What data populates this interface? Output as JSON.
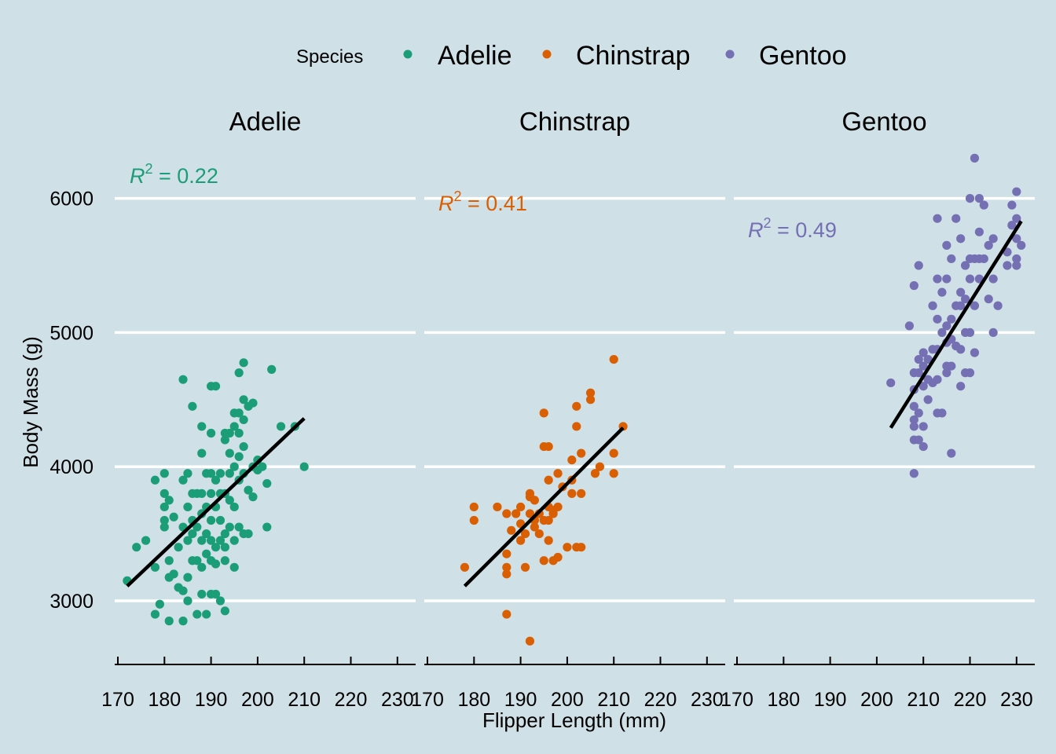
{
  "chart_data": {
    "type": "scatter",
    "xlabel": "Flipper Length (mm)",
    "ylabel": "Body Mass (g)",
    "xlim": [
      170,
      230
    ],
    "ylim": [
      2500,
      6500
    ],
    "xticks": [
      170,
      180,
      190,
      200,
      210,
      220,
      230
    ],
    "yticks": [
      3000,
      4000,
      5000,
      6000
    ],
    "grid": "horizontal major lines",
    "legend": {
      "title": "Species",
      "position": "top",
      "entries": [
        {
          "label": "Adelie",
          "color": "#1b9e77"
        },
        {
          "label": "Chinstrap",
          "color": "#d95f02"
        },
        {
          "label": "Gentoo",
          "color": "#7570b3"
        }
      ]
    },
    "panels": [
      {
        "name": "Adelie",
        "color": "#1b9e77",
        "r2_label": "= 0.22",
        "fit": {
          "x": [
            172,
            210
          ],
          "y": [
            3110,
            4360
          ]
        },
        "points": [
          [
            172,
            3150
          ],
          [
            174,
            3400
          ],
          [
            176,
            3450
          ],
          [
            178,
            3900
          ],
          [
            178,
            3250
          ],
          [
            179,
            2975
          ],
          [
            178,
            2900
          ],
          [
            180,
            3950
          ],
          [
            180,
            3800
          ],
          [
            180,
            3700
          ],
          [
            180,
            3600
          ],
          [
            180,
            3550
          ],
          [
            181,
            3300
          ],
          [
            181,
            3175
          ],
          [
            181,
            2850
          ],
          [
            181,
            3750
          ],
          [
            182,
            3625
          ],
          [
            182,
            3200
          ],
          [
            183,
            3400
          ],
          [
            183,
            3100
          ],
          [
            184,
            3550
          ],
          [
            184,
            3075
          ],
          [
            184,
            2850
          ],
          [
            184,
            3900
          ],
          [
            184,
            4650
          ],
          [
            185,
            3950
          ],
          [
            185,
            3700
          ],
          [
            185,
            3450
          ],
          [
            185,
            3175
          ],
          [
            185,
            3000
          ],
          [
            186,
            3800
          ],
          [
            186,
            3600
          ],
          [
            186,
            3500
          ],
          [
            186,
            3300
          ],
          [
            186,
            4450
          ],
          [
            187,
            3800
          ],
          [
            187,
            3550
          ],
          [
            187,
            3300
          ],
          [
            187,
            2900
          ],
          [
            188,
            4300
          ],
          [
            188,
            4100
          ],
          [
            188,
            3800
          ],
          [
            188,
            3650
          ],
          [
            188,
            3450
          ],
          [
            188,
            3250
          ],
          [
            188,
            3050
          ],
          [
            189,
            3950
          ],
          [
            189,
            3700
          ],
          [
            189,
            3500
          ],
          [
            189,
            3350
          ],
          [
            189,
            2900
          ],
          [
            190,
            4600
          ],
          [
            190,
            4250
          ],
          [
            190,
            3950
          ],
          [
            190,
            3800
          ],
          [
            190,
            3600
          ],
          [
            190,
            3450
          ],
          [
            190,
            3300
          ],
          [
            190,
            3050
          ],
          [
            191,
            4600
          ],
          [
            191,
            3900
          ],
          [
            191,
            3700
          ],
          [
            191,
            3400
          ],
          [
            191,
            3275
          ],
          [
            191,
            3050
          ],
          [
            192,
            3950
          ],
          [
            192,
            3800
          ],
          [
            192,
            3600
          ],
          [
            192,
            3450
          ],
          [
            192,
            3000
          ],
          [
            193,
            4250
          ],
          [
            193,
            4200
          ],
          [
            193,
            3800
          ],
          [
            193,
            3500
          ],
          [
            193,
            3400
          ],
          [
            193,
            3300
          ],
          [
            193,
            2925
          ],
          [
            194,
            4250
          ],
          [
            194,
            4100
          ],
          [
            194,
            3950
          ],
          [
            194,
            3750
          ],
          [
            194,
            3550
          ],
          [
            195,
            4400
          ],
          [
            195,
            4300
          ],
          [
            195,
            4000
          ],
          [
            195,
            3700
          ],
          [
            195,
            3450
          ],
          [
            195,
            3250
          ],
          [
            196,
            4700
          ],
          [
            196,
            4400
          ],
          [
            196,
            4250
          ],
          [
            196,
            4075
          ],
          [
            196,
            3900
          ],
          [
            196,
            3550
          ],
          [
            197,
            4775
          ],
          [
            197,
            4500
          ],
          [
            197,
            4350
          ],
          [
            197,
            4150
          ],
          [
            197,
            3950
          ],
          [
            197,
            3500
          ],
          [
            198,
            4450
          ],
          [
            198,
            3825
          ],
          [
            198,
            3500
          ],
          [
            199,
            4475
          ],
          [
            199,
            4000
          ],
          [
            199,
            3775
          ],
          [
            200,
            4050
          ],
          [
            200,
            3975
          ],
          [
            201,
            4000
          ],
          [
            202,
            3875
          ],
          [
            202,
            3550
          ],
          [
            203,
            4725
          ],
          [
            205,
            4300
          ],
          [
            208,
            4300
          ],
          [
            210,
            4000
          ]
        ]
      },
      {
        "name": "Chinstrap",
        "color": "#d95f02",
        "r2_label": "= 0.41",
        "fit": {
          "x": [
            178,
            212
          ],
          "y": [
            3110,
            4290
          ]
        },
        "points": [
          [
            178,
            3250
          ],
          [
            180,
            3700
          ],
          [
            180,
            3600
          ],
          [
            185,
            3700
          ],
          [
            187,
            3650
          ],
          [
            187,
            3350
          ],
          [
            187,
            3250
          ],
          [
            187,
            3200
          ],
          [
            187,
            2900
          ],
          [
            188,
            3525
          ],
          [
            189,
            3650
          ],
          [
            190,
            3575
          ],
          [
            190,
            3450
          ],
          [
            190,
            3700
          ],
          [
            191,
            3500
          ],
          [
            191,
            3250
          ],
          [
            192,
            3650
          ],
          [
            192,
            3775
          ],
          [
            192,
            3800
          ],
          [
            192,
            2700
          ],
          [
            193,
            3750
          ],
          [
            193,
            3600
          ],
          [
            193,
            3550
          ],
          [
            194,
            3650
          ],
          [
            194,
            3500
          ],
          [
            195,
            4150
          ],
          [
            195,
            4400
          ],
          [
            195,
            3600
          ],
          [
            195,
            3300
          ],
          [
            196,
            4150
          ],
          [
            196,
            3900
          ],
          [
            196,
            3700
          ],
          [
            196,
            3600
          ],
          [
            196,
            3450
          ],
          [
            197,
            3650
          ],
          [
            197,
            3675
          ],
          [
            197,
            3300
          ],
          [
            198,
            3950
          ],
          [
            198,
            3700
          ],
          [
            198,
            3325
          ],
          [
            199,
            3850
          ],
          [
            200,
            3400
          ],
          [
            201,
            4050
          ],
          [
            201,
            3900
          ],
          [
            201,
            3800
          ],
          [
            202,
            4450
          ],
          [
            202,
            4300
          ],
          [
            202,
            3400
          ],
          [
            203,
            4100
          ],
          [
            203,
            3800
          ],
          [
            203,
            3400
          ],
          [
            205,
            4550
          ],
          [
            205,
            4500
          ],
          [
            206,
            3950
          ],
          [
            207,
            4000
          ],
          [
            210,
            4800
          ],
          [
            210,
            4100
          ],
          [
            210,
            3950
          ],
          [
            212,
            4300
          ]
        ]
      },
      {
        "name": "Gentoo",
        "color": "#7570b3",
        "r2_label": "= 0.49",
        "fit": {
          "x": [
            203,
            231
          ],
          "y": [
            4290,
            5830
          ]
        },
        "points": [
          [
            203,
            4625
          ],
          [
            207,
            5050
          ],
          [
            208,
            5350
          ],
          [
            208,
            4700
          ],
          [
            208,
            4575
          ],
          [
            208,
            4450
          ],
          [
            208,
            4350
          ],
          [
            208,
            4300
          ],
          [
            208,
            4200
          ],
          [
            208,
            3950
          ],
          [
            209,
            5500
          ],
          [
            209,
            4800
          ],
          [
            209,
            4700
          ],
          [
            209,
            4400
          ],
          [
            209,
            4200
          ],
          [
            210,
            4850
          ],
          [
            210,
            4750
          ],
          [
            210,
            4600
          ],
          [
            210,
            4300
          ],
          [
            210,
            4150
          ],
          [
            211,
            4800
          ],
          [
            211,
            4500
          ],
          [
            211,
            4650
          ],
          [
            212,
            5200
          ],
          [
            212,
            4875
          ],
          [
            212,
            4625
          ],
          [
            213,
            5850
          ],
          [
            213,
            5400
          ],
          [
            213,
            5100
          ],
          [
            213,
            4875
          ],
          [
            213,
            4650
          ],
          [
            213,
            4400
          ],
          [
            214,
            5300
          ],
          [
            214,
            5000
          ],
          [
            214,
            4400
          ],
          [
            215,
            5650
          ],
          [
            215,
            5400
          ],
          [
            215,
            5050
          ],
          [
            215,
            4925
          ],
          [
            215,
            4700
          ],
          [
            215,
            4750
          ],
          [
            216,
            5550
          ],
          [
            216,
            5100
          ],
          [
            216,
            4950
          ],
          [
            216,
            4750
          ],
          [
            216,
            4100
          ],
          [
            217,
            5850
          ],
          [
            217,
            5200
          ],
          [
            217,
            4900
          ],
          [
            218,
            5700
          ],
          [
            218,
            5300
          ],
          [
            218,
            5200
          ],
          [
            218,
            4875
          ],
          [
            218,
            4600
          ],
          [
            219,
            5500
          ],
          [
            219,
            5250
          ],
          [
            219,
            5000
          ],
          [
            219,
            4700
          ],
          [
            220,
            6000
          ],
          [
            220,
            5550
          ],
          [
            220,
            5400
          ],
          [
            220,
            5000
          ],
          [
            220,
            4700
          ],
          [
            221,
            6300
          ],
          [
            221,
            5550
          ],
          [
            221,
            5200
          ],
          [
            221,
            4850
          ],
          [
            222,
            6000
          ],
          [
            222,
            5750
          ],
          [
            222,
            5550
          ],
          [
            222,
            5400
          ],
          [
            223,
            5950
          ],
          [
            223,
            5550
          ],
          [
            224,
            5650
          ],
          [
            224,
            5250
          ],
          [
            225,
            5700
          ],
          [
            225,
            5400
          ],
          [
            225,
            5000
          ],
          [
            226,
            5200
          ],
          [
            228,
            5600
          ],
          [
            228,
            5500
          ],
          [
            229,
            5950
          ],
          [
            229,
            5800
          ],
          [
            230,
            6050
          ],
          [
            230,
            5850
          ],
          [
            230,
            5700
          ],
          [
            230,
            5550
          ],
          [
            230,
            5500
          ],
          [
            231,
            5650
          ]
        ]
      }
    ]
  }
}
